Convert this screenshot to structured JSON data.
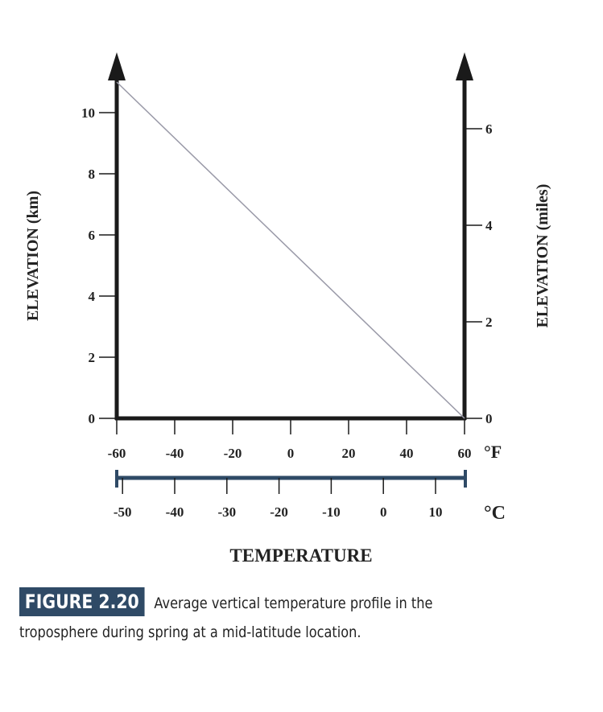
{
  "chart_data": {
    "type": "line",
    "title": "",
    "xlabel": "TEMPERATURE",
    "ylabel_left": "ELEVATION (km)",
    "ylabel_right": "ELEVATION (miles)",
    "x_unit_primary": "°F",
    "x_unit_secondary": "°C",
    "xlim_f": [
      -60,
      60
    ],
    "ylim_km": [
      0,
      11
    ],
    "x_ticks_f": [
      "-60",
      "-40",
      "-20",
      "0",
      "20",
      "40",
      "60"
    ],
    "x_ticks_c": [
      "-50",
      "-40",
      "-30",
      "-20",
      "-10",
      "0",
      "10"
    ],
    "y_ticks_km": [
      "0",
      "2",
      "4",
      "6",
      "8",
      "10"
    ],
    "y_ticks_miles": [
      "0",
      "2",
      "4",
      "6"
    ],
    "series": [
      {
        "name": "Temperature profile",
        "x_f": [
          -60,
          60
        ],
        "y_km": [
          11,
          0
        ],
        "color": "#9a9aa8"
      }
    ],
    "grid": false
  },
  "caption": {
    "label": "FIGURE 2.20",
    "line1": "Average vertical temperature profile in the",
    "line2": "troposphere during spring at a mid-latitude location."
  },
  "colors": {
    "axis": "#1a1a1a",
    "celsius_bar": "#2f4a66",
    "label_bg": "#2f4a66"
  }
}
